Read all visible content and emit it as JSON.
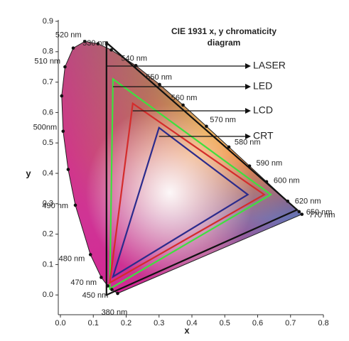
{
  "chart_data": {
    "type": "chromaticity",
    "title_lines": [
      "CIE 1931 x, y chromaticity",
      "diagram"
    ],
    "xlabel": "x",
    "ylabel": "y",
    "xlim": [
      0,
      0.8
    ],
    "ylim": [
      -0.065,
      0.9
    ],
    "xticks": [
      {
        "value": 0,
        "label": "0.0"
      },
      0.1,
      0.2,
      0.3,
      0.4,
      0.5,
      0.6,
      0.7,
      0.8
    ],
    "yticks": [
      {
        "value": 0,
        "label": "0.0"
      },
      0.1,
      0.2,
      0.3,
      0.4,
      0.5,
      0.6,
      0.7,
      0.8,
      0.9
    ],
    "locus": {
      "labels": [
        "380 nm",
        "450 nm",
        null,
        "470 nm",
        "480 nm",
        "490 nm",
        null,
        "500nm",
        null,
        "510 nm",
        null,
        "520 nm",
        null,
        "530 nm",
        "540 nm",
        "550 nm",
        "560 nm",
        "570 nm",
        "580 nm",
        "590 nm",
        "600 nm",
        "620 nm",
        "650 nm",
        "770 nm"
      ],
      "x": [
        0.1741,
        0.1566,
        0.144,
        0.1241,
        0.0913,
        0.0454,
        0.0235,
        0.0082,
        0.0039,
        0.0139,
        0.0389,
        0.0743,
        0.1142,
        0.1547,
        0.2296,
        0.3016,
        0.3731,
        0.4441,
        0.5125,
        0.5752,
        0.627,
        0.6915,
        0.726,
        0.7347
      ],
      "y": [
        0.005,
        0.0177,
        0.0297,
        0.0578,
        0.1327,
        0.295,
        0.4127,
        0.5384,
        0.6548,
        0.7502,
        0.812,
        0.8338,
        0.8262,
        0.8059,
        0.7543,
        0.6923,
        0.6245,
        0.5547,
        0.4866,
        0.4242,
        0.3725,
        0.3083,
        0.274,
        0.2653
      ]
    },
    "series": [
      {
        "name": "LASER",
        "color": "#111111",
        "x": [
          0.14,
          0.72,
          0.14
        ],
        "y": [
          0.83,
          0.28,
          0.0
        ]
      },
      {
        "name": "LED",
        "color": "#3ee03e",
        "x": [
          0.16,
          0.64,
          0.15
        ],
        "y": [
          0.71,
          0.33,
          0.02
        ]
      },
      {
        "name": "LCD",
        "color": "#d42c2c",
        "x": [
          0.22,
          0.62,
          0.15
        ],
        "y": [
          0.63,
          0.33,
          0.04
        ]
      },
      {
        "name": "CRT",
        "color": "#2b2b8c",
        "x": [
          0.3,
          0.57,
          0.16
        ],
        "y": [
          0.55,
          0.33,
          0.06
        ]
      }
    ]
  }
}
